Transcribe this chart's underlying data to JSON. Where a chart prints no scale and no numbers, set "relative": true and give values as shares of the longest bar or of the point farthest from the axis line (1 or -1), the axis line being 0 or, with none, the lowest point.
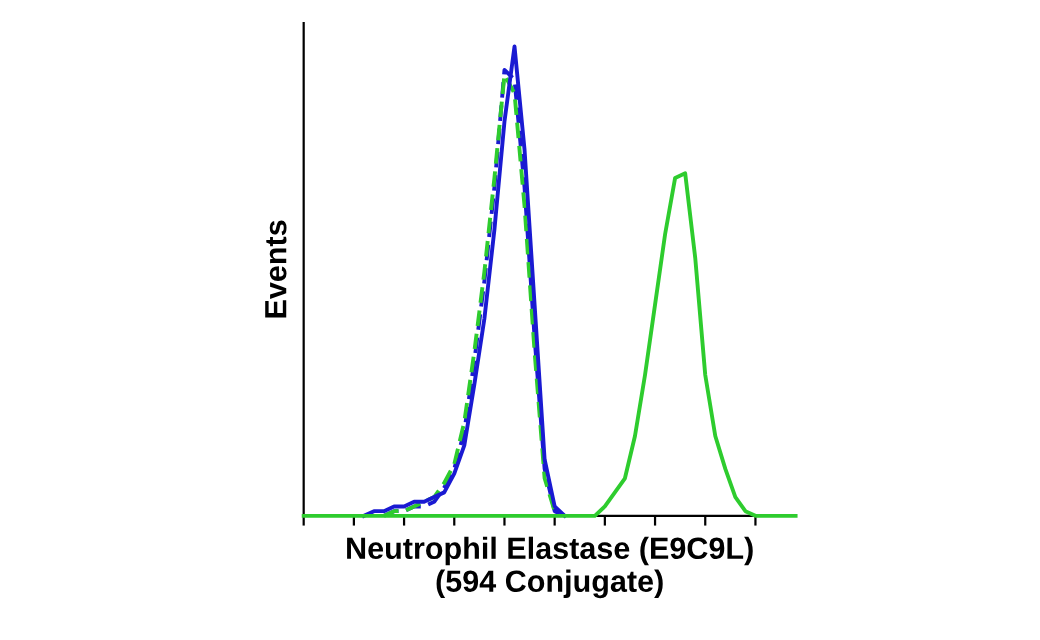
{
  "chart_data": {
    "type": "line",
    "relative": true,
    "ylabel": "Events",
    "xlabel": "Neutrophil Elastase (E9C9L)\n(594 Conjugate)",
    "tick_labels": false,
    "grid": false,
    "legend": false,
    "categories": [
      null,
      null,
      null,
      null,
      null,
      null,
      null,
      null,
      null,
      null,
      null,
      null,
      null,
      null,
      null,
      null,
      null,
      null,
      null,
      null,
      null,
      null,
      null,
      null,
      null,
      null,
      null,
      null,
      null,
      null,
      null,
      null,
      null,
      null,
      null,
      null,
      null,
      null,
      null,
      null,
      null,
      null,
      null,
      null,
      null,
      null,
      null,
      null,
      null,
      null
    ],
    "series": [
      {
        "color": "#1a1ad2",
        "line_style": "dashed",
        "values": [
          null,
          null,
          null,
          null,
          null,
          null,
          null,
          null,
          0,
          0.01,
          0.01,
          0.02,
          0.02,
          0.03,
          0.06,
          0.1,
          0.18,
          0.33,
          0.5,
          0.7,
          0.95,
          0.93,
          0.7,
          0.38,
          0.1,
          0.01,
          0,
          null,
          null,
          null,
          null,
          null,
          null,
          null,
          null,
          null,
          null,
          null,
          null,
          null,
          null,
          null,
          null,
          null,
          null,
          null,
          null,
          null,
          null,
          null
        ]
      },
      {
        "color": "#2ecc2e",
        "line_style": "dashed",
        "values": [
          null,
          null,
          null,
          null,
          null,
          null,
          null,
          null,
          0,
          0.01,
          0.01,
          0.02,
          0.03,
          0.04,
          0.07,
          0.11,
          0.2,
          0.35,
          0.52,
          0.72,
          0.94,
          0.9,
          0.66,
          0.35,
          0.08,
          0.01,
          0,
          null,
          null,
          null,
          null,
          null,
          null,
          null,
          null,
          null,
          null,
          null,
          null,
          null,
          null,
          null,
          null,
          null,
          null,
          null,
          null,
          null,
          null,
          null
        ]
      },
      {
        "color": "#1a1ad2",
        "line_style": "solid",
        "values": [
          null,
          null,
          null,
          null,
          null,
          null,
          0,
          0.01,
          0.01,
          0.02,
          0.02,
          0.03,
          0.03,
          0.04,
          0.05,
          0.09,
          0.15,
          0.28,
          0.42,
          0.61,
          0.84,
          1.0,
          0.78,
          0.45,
          0.12,
          0.02,
          0,
          null,
          null,
          null,
          null,
          null,
          null,
          null,
          null,
          null,
          null,
          null,
          null,
          null,
          null,
          null,
          null,
          null,
          null,
          null,
          null,
          null,
          null,
          null
        ]
      },
      {
        "color": "#2ecc2e",
        "line_style": "solid",
        "values": [
          0,
          0,
          0,
          0,
          0,
          0,
          0,
          0,
          0,
          0,
          0,
          0,
          0,
          0,
          0,
          0,
          0,
          0,
          0,
          0,
          0,
          0,
          0,
          0,
          0,
          0,
          0,
          0,
          0,
          0,
          0.02,
          0.05,
          0.08,
          0.17,
          0.3,
          0.45,
          0.6,
          0.72,
          0.73,
          0.55,
          0.3,
          0.17,
          0.1,
          0.04,
          0.01,
          0,
          0,
          0,
          0,
          0
        ]
      }
    ]
  }
}
